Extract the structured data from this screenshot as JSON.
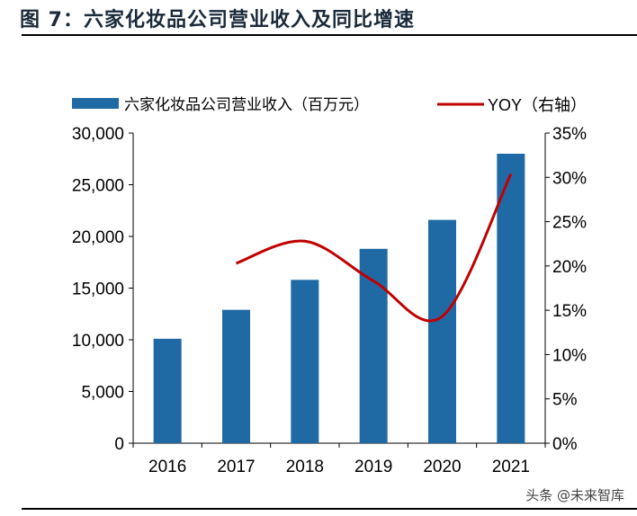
{
  "title": "图 7：六家化妆品公司营业收入及同比增速",
  "watermark": "头条 @未来智库",
  "chart_data": {
    "type": "bar+line",
    "categories": [
      "2016",
      "2017",
      "2018",
      "2019",
      "2020",
      "2021"
    ],
    "series": [
      {
        "name": "六家化妆品公司营业收入（百万元）",
        "type": "bar",
        "axis": "left",
        "color": "#1f6aa5",
        "values": [
          10100,
          12900,
          15800,
          18800,
          21600,
          28000
        ]
      },
      {
        "name": "YOY（右轴）",
        "type": "line",
        "axis": "right",
        "color": "#c00000",
        "values": [
          null,
          20.3,
          22.8,
          18.3,
          14.3,
          30.4
        ]
      }
    ],
    "left_axis": {
      "ylim": [
        0,
        30000
      ],
      "ticks": [
        "0",
        "5,000",
        "10,000",
        "15,000",
        "20,000",
        "25,000",
        "30,000"
      ]
    },
    "right_axis": {
      "ylim": [
        0,
        35
      ],
      "ticks": [
        "0%",
        "5%",
        "10%",
        "15%",
        "20%",
        "25%",
        "30%",
        "35%"
      ]
    },
    "legend_position": "top",
    "grid": false
  }
}
